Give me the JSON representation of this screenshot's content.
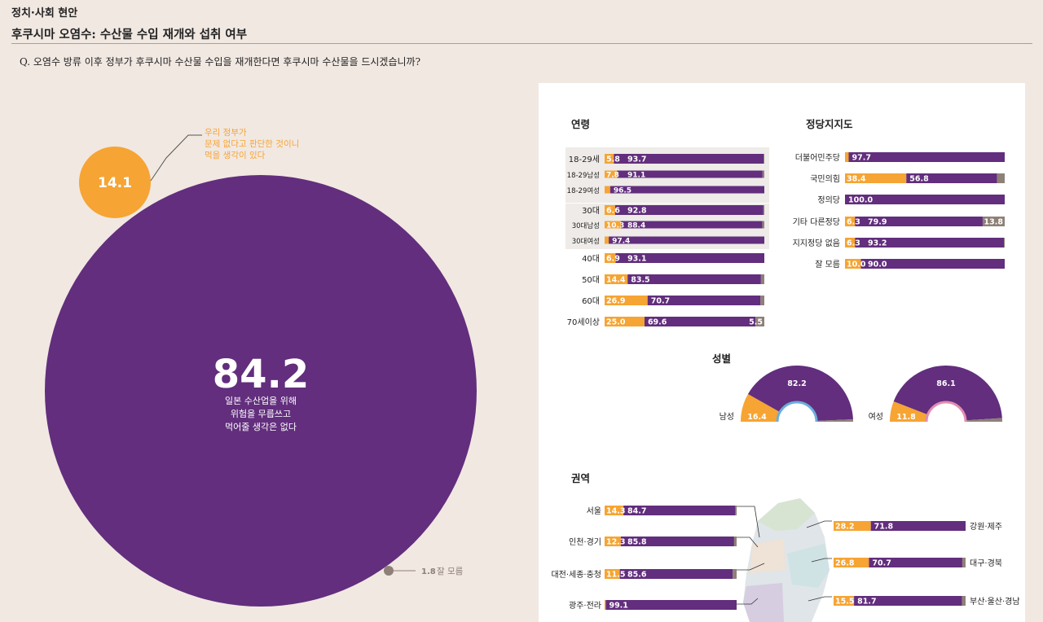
{
  "header": {
    "section": "정치·사회 현안",
    "title": "후쿠시마 오염수: 수산물 수입 재개와 섭취 여부",
    "question": "Q. 오염수 방류 이후 정부가 후쿠시마 수산물 수입을 재개한다면 후쿠시마 수산물을 드시겠습니까?"
  },
  "colors": {
    "background": "#f1e8e2",
    "eat": "#f6a433",
    "not_eat": "#622e7d",
    "unknown": "#8e8078",
    "male_accent": "#6aaedc",
    "female_accent": "#e28db0",
    "age_bg": "#eeebe8"
  },
  "chart_data": [
    {
      "type": "pie",
      "title": "",
      "slices": [
        {
          "label": "일본 수산업을 위해 위험을 무릅쓰고 먹어줄 생각은 없다",
          "value": 84.2,
          "label_lines": [
            "일본 수산업을 위해",
            "위험을 무릅쓰고",
            "먹어줄 생각은 없다"
          ]
        },
        {
          "label": "우리 정부가 문제 없다고 판단한 것이니 먹을 생각이 있다",
          "value": 14.1,
          "label_lines": [
            "우리 정부가",
            "문제 없다고 판단한 것이니",
            "먹을 생각이 있다"
          ]
        },
        {
          "label": "잘 모름",
          "value": 1.8
        }
      ]
    },
    {
      "type": "bar",
      "title": "연령",
      "stacked": true,
      "categories": [
        "18-29세",
        "18-29남성",
        "18-29여성",
        "30대",
        "30대남성",
        "30대여성",
        "40대",
        "50대",
        "60대",
        "70세이상"
      ],
      "series": [
        {
          "key": "eat",
          "values": [
            5.8,
            7.8,
            3.5,
            6.6,
            10.3,
            2.6,
            6.9,
            14.4,
            26.9,
            25.0
          ]
        },
        {
          "key": "not_eat",
          "values": [
            93.7,
            91.1,
            96.5,
            92.8,
            88.4,
            97.4,
            93.1,
            83.5,
            70.7,
            69.6
          ]
        },
        {
          "key": "unknown",
          "values": [
            0.5,
            1.1,
            0.0,
            0.6,
            1.3,
            0.0,
            0.0,
            2.1,
            2.4,
            5.5
          ]
        }
      ],
      "labels": [
        [
          "5.8",
          "93.7",
          ""
        ],
        [
          "7.8",
          "91.1",
          ""
        ],
        [
          "",
          "96.5",
          ""
        ],
        [
          "6.6",
          "92.8",
          ""
        ],
        [
          "10.3",
          "88.4",
          ""
        ],
        [
          "",
          "97.4",
          ""
        ],
        [
          "6.9",
          "93.1",
          ""
        ],
        [
          "14.4",
          "83.5",
          ""
        ],
        [
          "26.9",
          "70.7",
          ""
        ],
        [
          "25.0",
          "69.6",
          "5.5"
        ]
      ]
    },
    {
      "type": "bar",
      "title": "정당지지도",
      "stacked": true,
      "categories": [
        "더불어민주당",
        "국민의힘",
        "정의당",
        "기타 다른정당",
        "지지정당 없음",
        "잘 모름"
      ],
      "series": [
        {
          "key": "eat",
          "values": [
            2.3,
            38.4,
            0.0,
            6.3,
            6.3,
            10.0
          ]
        },
        {
          "key": "not_eat",
          "values": [
            97.7,
            56.8,
            100.0,
            79.9,
            93.2,
            90.0
          ]
        },
        {
          "key": "unknown",
          "values": [
            0.0,
            4.8,
            0.0,
            13.8,
            0.5,
            0.0
          ]
        }
      ],
      "labels": [
        [
          "",
          "97.7",
          ""
        ],
        [
          "38.4",
          "56.8",
          ""
        ],
        [
          "",
          "100.0",
          ""
        ],
        [
          "6.3",
          "79.9",
          "13.8"
        ],
        [
          "6.3",
          "93.2",
          ""
        ],
        [
          "10.0",
          "90.0",
          ""
        ]
      ]
    },
    {
      "type": "pie",
      "title": "성별",
      "charts": [
        {
          "name": "남성",
          "eat": 16.4,
          "not_eat": 82.2,
          "unknown": 1.4
        },
        {
          "name": "여성",
          "eat": 11.8,
          "not_eat": 86.1,
          "unknown": 2.1
        }
      ]
    },
    {
      "type": "bar",
      "title": "권역",
      "stacked": true,
      "categories": [
        "서울",
        "인천·경기",
        "대전·세종·충청",
        "광주·전라",
        "강원·제주",
        "대구·경북",
        "부산·울산·경남"
      ],
      "series": [
        {
          "key": "eat",
          "values": [
            14.3,
            12.3,
            11.5,
            0.9,
            28.2,
            26.8,
            15.5
          ]
        },
        {
          "key": "not_eat",
          "values": [
            84.7,
            85.8,
            85.6,
            99.1,
            71.8,
            70.7,
            81.7
          ]
        },
        {
          "key": "unknown",
          "values": [
            1.0,
            1.9,
            2.9,
            0.0,
            0.0,
            2.5,
            2.8
          ]
        }
      ],
      "labels": [
        [
          "14.3",
          "84.7"
        ],
        [
          "12.3",
          "85.8"
        ],
        [
          "11.5",
          "85.6"
        ],
        [
          "",
          "99.1"
        ],
        [
          "28.2",
          "71.8"
        ],
        [
          "26.8",
          "70.7"
        ],
        [
          "15.5",
          "81.7"
        ]
      ]
    }
  ]
}
